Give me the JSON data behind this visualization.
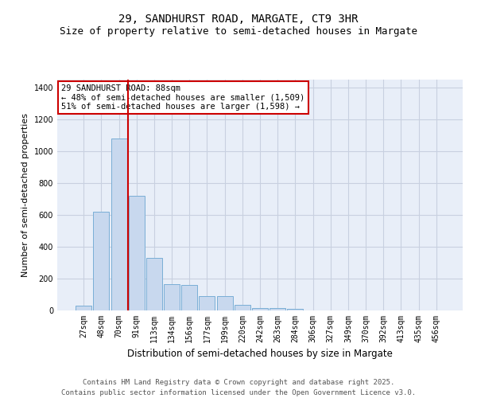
{
  "title_line1": "29, SANDHURST ROAD, MARGATE, CT9 3HR",
  "title_line2": "Size of property relative to semi-detached houses in Margate",
  "xlabel": "Distribution of semi-detached houses by size in Margate",
  "ylabel": "Number of semi-detached properties",
  "categories": [
    "27sqm",
    "48sqm",
    "70sqm",
    "91sqm",
    "113sqm",
    "134sqm",
    "156sqm",
    "177sqm",
    "199sqm",
    "220sqm",
    "242sqm",
    "263sqm",
    "284sqm",
    "306sqm",
    "327sqm",
    "349sqm",
    "370sqm",
    "392sqm",
    "413sqm",
    "435sqm",
    "456sqm"
  ],
  "values": [
    30,
    620,
    1080,
    720,
    330,
    165,
    160,
    90,
    90,
    35,
    15,
    15,
    10,
    0,
    0,
    0,
    0,
    0,
    0,
    0,
    0
  ],
  "bar_color": "#c8d8ee",
  "bar_edge_color": "#7aaed6",
  "red_line_color": "#cc0000",
  "annotation_text": "29 SANDHURST ROAD: 88sqm\n← 48% of semi-detached houses are smaller (1,509)\n51% of semi-detached houses are larger (1,598) →",
  "annotation_box_color": "#ffffff",
  "annotation_box_edge": "#cc0000",
  "ylim": [
    0,
    1450
  ],
  "yticks": [
    0,
    200,
    400,
    600,
    800,
    1000,
    1200,
    1400
  ],
  "background_color": "#ffffff",
  "plot_bg_color": "#e8eef8",
  "grid_color": "#c8d0e0",
  "footer_text": "Contains HM Land Registry data © Crown copyright and database right 2025.\nContains public sector information licensed under the Open Government Licence v3.0.",
  "title_fontsize": 10,
  "subtitle_fontsize": 9,
  "xlabel_fontsize": 8.5,
  "ylabel_fontsize": 8,
  "tick_fontsize": 7,
  "annotation_fontsize": 7.5,
  "footer_fontsize": 6.5,
  "red_line_x": 2.5
}
